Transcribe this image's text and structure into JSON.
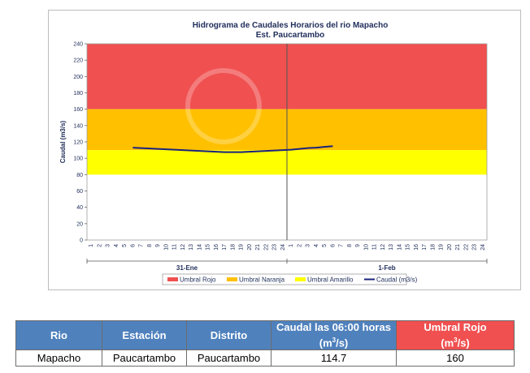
{
  "chart_data": {
    "type": "line",
    "title": "Hidrograma de Caudales Horarios del rio Mapacho",
    "subtitle": "Est. Paucartambo",
    "ylabel": "Caudal  (m3/s)",
    "ylim": [
      0,
      240
    ],
    "yticks": [
      0,
      20,
      40,
      60,
      80,
      100,
      120,
      140,
      160,
      180,
      200,
      220,
      240
    ],
    "days": [
      "31-Ene",
      "1-Feb"
    ],
    "hour_ticks": [
      "1",
      "2",
      "3",
      "4",
      "5",
      "6",
      "7",
      "8",
      "9",
      "10",
      "11",
      "12",
      "13",
      "14",
      "15",
      "16",
      "17",
      "18",
      "19",
      "20",
      "21",
      "22",
      "23",
      "24"
    ],
    "thresholds": [
      {
        "name": "Umbral Rojo",
        "from": 160,
        "to": 240,
        "color": "#f05050"
      },
      {
        "name": "Umbral Naranja",
        "from": 110,
        "to": 160,
        "color": "#ffc000"
      },
      {
        "name": "Umbral Amarillo",
        "from": 80,
        "to": 110,
        "color": "#ffff00"
      }
    ],
    "series": [
      {
        "name": "Caudal (m3/s)",
        "color": "#1a237e",
        "x": [
          6,
          7,
          8,
          9,
          10,
          11,
          12,
          13,
          14,
          15,
          16,
          17,
          18,
          19,
          20,
          21,
          22,
          23,
          24,
          25,
          26,
          27,
          28,
          29,
          30
        ],
        "y": [
          113,
          112.5,
          112,
          111.5,
          111,
          110.5,
          110,
          109.5,
          109,
          108.5,
          108,
          107.5,
          107.5,
          107.5,
          108,
          108.5,
          109,
          109.5,
          110,
          110.5,
          111.5,
          112.5,
          113,
          114,
          114.7
        ]
      }
    ],
    "legend": [
      "Umbral Rojo",
      "Umbral Naranja",
      "Umbral Amarillo",
      "Caudal (m3/s)"
    ],
    "legend_position": "bottom"
  },
  "table": {
    "headers": {
      "rio": "Rio",
      "estacion": "Estación",
      "distrito": "Distrito",
      "caudal_pre": "Caudal las 06:00 horas",
      "caudal_unit_a": "(m",
      "caudal_sup": "3",
      "caudal_unit_b": "/s)",
      "umbral_pre": "Umbral Rojo",
      "umbral_unit_a": "(m",
      "umbral_sup": "3",
      "umbral_unit_b": "/s)"
    },
    "row": {
      "rio": "Mapacho",
      "estacion": "Paucartambo",
      "distrito": "Paucartambo",
      "caudal": "114.7",
      "umbral": "160"
    }
  }
}
